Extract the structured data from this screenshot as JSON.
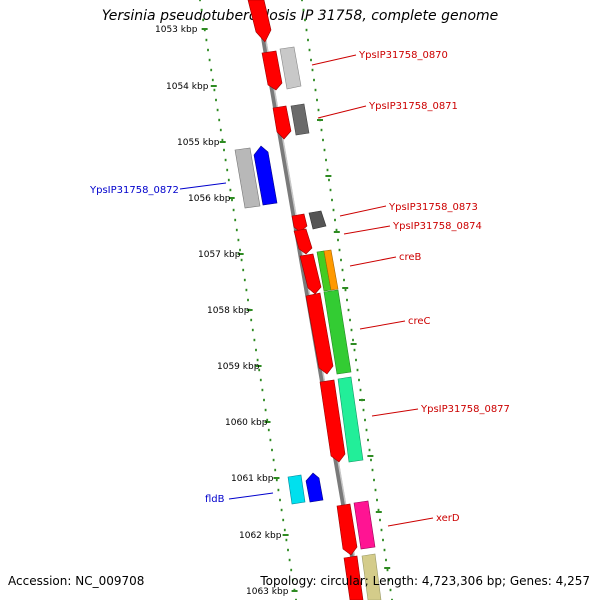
{
  "title": "Yersinia pseudotuberculosis IP 31758, complete genome",
  "footer": {
    "accession": "Accession: NC_009708",
    "stats": "Topology: circular; Length: 4,723,306 bp; Genes: 4,257"
  },
  "colors": {
    "ruler": "#2e8b22",
    "forward_label": "#cc0000",
    "reverse_label": "#0000cc",
    "backbone": "#808080"
  },
  "ruler_ticks": [
    "1053 kbp",
    "1054 kbp",
    "1055 kbp",
    "1056 kbp",
    "1057 kbp",
    "1058 kbp",
    "1059 kbp",
    "1060 kbp",
    "1061 kbp",
    "1062 kbp",
    "1063 kbp"
  ],
  "gene_labels": [
    {
      "text": "YpsIP31758_0870",
      "strand": "forward"
    },
    {
      "text": "YpsIP31758_0871",
      "strand": "forward"
    },
    {
      "text": "YpsIP31758_0872",
      "strand": "reverse"
    },
    {
      "text": "YpsIP31758_0873",
      "strand": "forward"
    },
    {
      "text": "YpsIP31758_0874",
      "strand": "forward"
    },
    {
      "text": "creB",
      "strand": "forward"
    },
    {
      "text": "creC",
      "strand": "forward"
    },
    {
      "text": "YpsIP31758_0877",
      "strand": "forward"
    },
    {
      "text": "fldB",
      "strand": "reverse"
    },
    {
      "text": "xerD",
      "strand": "forward"
    }
  ]
}
